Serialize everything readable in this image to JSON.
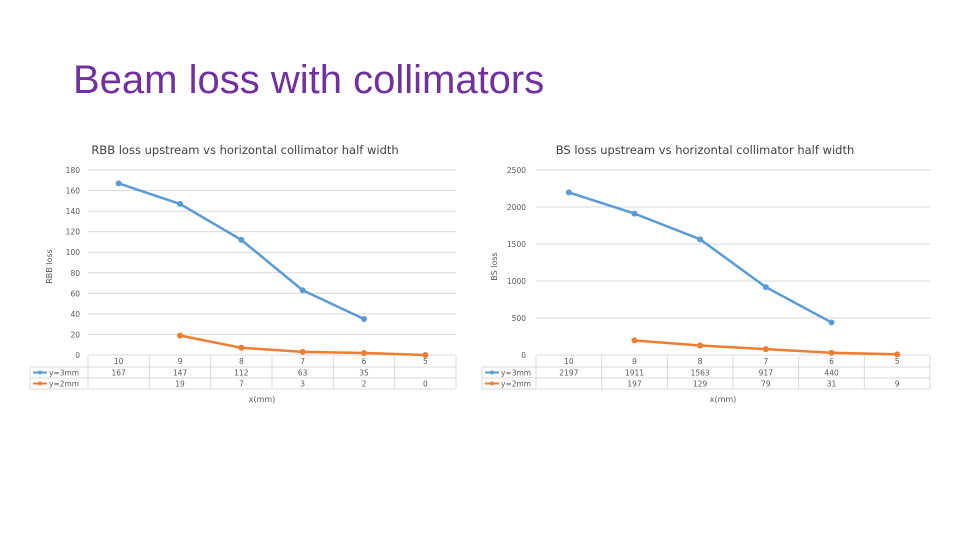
{
  "slide": {
    "title": "Beam loss with collimators"
  },
  "chart_data": [
    {
      "type": "line",
      "title": "RBB loss upstream vs horizontal collimator half width",
      "xlabel": "x(mm)",
      "ylabel": "RBB loss",
      "ylim": [
        0,
        180
      ],
      "yticks": [
        0,
        20,
        40,
        60,
        80,
        100,
        120,
        140,
        160,
        180
      ],
      "categories": [
        "10",
        "9",
        "8",
        "7",
        "6",
        "5"
      ],
      "grid": true,
      "legend": "data-table",
      "series": [
        {
          "name": "y=3mm",
          "color": "#5b9bd5",
          "values": [
            167,
            147,
            112,
            63,
            35,
            null
          ],
          "labels": [
            "167",
            "147",
            "112",
            "63",
            "35",
            ""
          ]
        },
        {
          "name": "y=2mm",
          "color": "#ed7d31",
          "values": [
            null,
            19,
            7,
            3,
            2,
            0
          ],
          "labels": [
            "",
            "19",
            "7",
            "3",
            "2",
            "0"
          ]
        }
      ]
    },
    {
      "type": "line",
      "title": "BS loss upstream vs horizontal collimator half width",
      "xlabel": "x(mm)",
      "ylabel": "BS loss",
      "ylim": [
        0,
        2500
      ],
      "yticks": [
        0,
        500,
        1000,
        1500,
        2000,
        2500
      ],
      "categories": [
        "10",
        "9",
        "8",
        "7",
        "6",
        "5"
      ],
      "grid": true,
      "legend": "data-table",
      "series": [
        {
          "name": "y=3mm",
          "color": "#5b9bd5",
          "values": [
            2197,
            1911,
            1563,
            917,
            440,
            null
          ],
          "labels": [
            "2197",
            "1911",
            "1563",
            "917",
            "440",
            ""
          ]
        },
        {
          "name": "y=2mm",
          "color": "#ed7d31",
          "values": [
            null,
            197,
            129,
            79,
            31,
            9
          ],
          "labels": [
            "",
            "197",
            "129",
            "79",
            "31",
            "9"
          ]
        }
      ]
    }
  ]
}
